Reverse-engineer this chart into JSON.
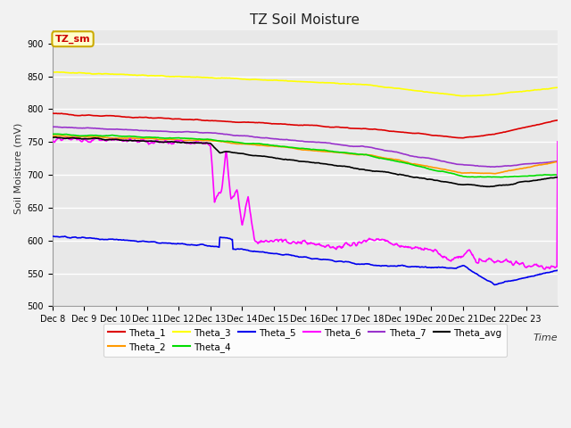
{
  "title": "TZ Soil Moisture",
  "xlabel": "Time",
  "ylabel": "Soil Moisture (mV)",
  "ylim": [
    500,
    920
  ],
  "yticks": [
    500,
    550,
    600,
    650,
    700,
    750,
    800,
    850,
    900
  ],
  "date_labels": [
    "Dec 8",
    "Dec 9",
    "Dec 10",
    "Dec 11",
    "Dec 12",
    "Dec 13",
    "Dec 14",
    "Dec 15",
    "Dec 16",
    "Dec 17",
    "Dec 18",
    "Dec 19",
    "Dec 20",
    "Dec 21",
    "Dec 22",
    "Dec 23"
  ],
  "n_days": 16,
  "plot_bg_color": "#e8e8e8",
  "fig_bg_color": "#f2f2f2",
  "grid_color": "#ffffff",
  "colors": {
    "Theta_1": "#dd0000",
    "Theta_2": "#ff9900",
    "Theta_3": "#ffff00",
    "Theta_4": "#00dd00",
    "Theta_5": "#0000ee",
    "Theta_6": "#ff00ff",
    "Theta_7": "#9933cc",
    "Theta_avg": "#000000"
  },
  "legend_box_facecolor": "#ffffcc",
  "legend_box_edgecolor": "#ccaa00",
  "legend_box_text": "TZ_sm",
  "legend_box_text_color": "#cc0000",
  "linewidth": 1.2
}
